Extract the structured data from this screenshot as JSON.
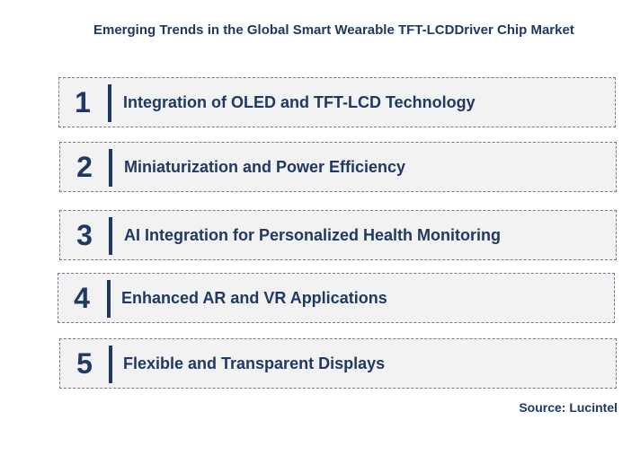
{
  "title": "Emerging Trends in the Global Smart Wearable TFT-LCDDriver Chip Market",
  "trends": [
    {
      "number": "1",
      "label": "Integration of OLED and TFT-LCD Technology"
    },
    {
      "number": "2",
      "label": "Miniaturization and Power Efficiency"
    },
    {
      "number": "3",
      "label": "AI Integration for Personalized Health Monitoring"
    },
    {
      "number": "4",
      "label": "Enhanced AR and VR Applications"
    },
    {
      "number": "5",
      "label": "Flexible and Transparent Displays"
    }
  ],
  "source": "Source: Lucintel"
}
